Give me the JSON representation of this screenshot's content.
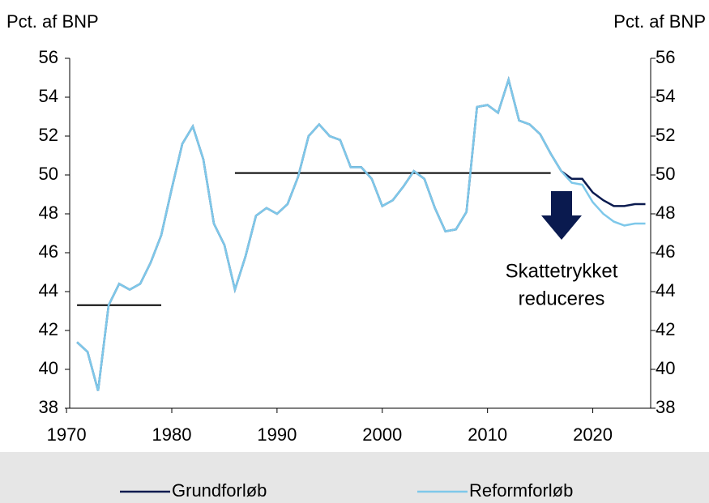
{
  "chart_data": {
    "type": "line",
    "ylabel": "Pct. af BNP",
    "y2label": "Pct. af BNP",
    "x": [
      1971,
      1972,
      1973,
      1974,
      1975,
      1976,
      1977,
      1978,
      1979,
      1980,
      1981,
      1982,
      1983,
      1984,
      1985,
      1986,
      1987,
      1988,
      1989,
      1990,
      1991,
      1992,
      1993,
      1994,
      1995,
      1996,
      1997,
      1998,
      1999,
      2000,
      2001,
      2002,
      2003,
      2004,
      2005,
      2006,
      2007,
      2008,
      2009,
      2010,
      2011,
      2012,
      2013,
      2014,
      2015,
      2016,
      2017,
      2018,
      2019,
      2020,
      2021,
      2022,
      2023,
      2024,
      2025
    ],
    "series": [
      {
        "name": "Grundforløb",
        "color": "#0a1a4f",
        "values": [
          41.4,
          40.9,
          38.9,
          43.3,
          44.4,
          44.1,
          44.4,
          45.5,
          46.9,
          49.3,
          51.6,
          52.5,
          50.8,
          47.5,
          46.4,
          44.1,
          45.8,
          47.9,
          48.3,
          48.0,
          48.5,
          49.9,
          52.0,
          52.6,
          52.0,
          51.8,
          50.4,
          50.4,
          49.8,
          48.4,
          48.7,
          49.4,
          50.2,
          49.8,
          48.3,
          47.1,
          47.2,
          48.1,
          53.5,
          53.6,
          53.2,
          54.9,
          52.8,
          52.6,
          52.1,
          51.1,
          50.2,
          49.8,
          49.8,
          49.1,
          48.7,
          48.4,
          48.4,
          48.5,
          48.5
        ]
      },
      {
        "name": "Reformforløb",
        "color": "#7ec8ea",
        "values": [
          41.4,
          40.9,
          38.9,
          43.3,
          44.4,
          44.1,
          44.4,
          45.5,
          46.9,
          49.3,
          51.6,
          52.5,
          50.8,
          47.5,
          46.4,
          44.1,
          45.8,
          47.9,
          48.3,
          48.0,
          48.5,
          49.9,
          52.0,
          52.6,
          52.0,
          51.8,
          50.4,
          50.4,
          49.8,
          48.4,
          48.7,
          49.4,
          50.2,
          49.8,
          48.3,
          47.1,
          47.2,
          48.1,
          53.5,
          53.6,
          53.2,
          54.9,
          52.8,
          52.6,
          52.1,
          51.1,
          50.2,
          49.6,
          49.5,
          48.6,
          48.0,
          47.6,
          47.4,
          47.5,
          47.5
        ]
      }
    ],
    "reference_lines": [
      {
        "x": [
          1971,
          1979
        ],
        "value": 43.3,
        "color": "#000000"
      },
      {
        "x": [
          1986,
          2016
        ],
        "value": 50.1,
        "color": "#000000"
      }
    ],
    "annotation": [
      "Skattetrykket",
      "reduceres"
    ],
    "xlim": [
      1970.3,
      2025.5
    ],
    "xticks": [
      1970,
      1980,
      1990,
      2000,
      2010,
      2020
    ],
    "ylim": [
      38,
      56
    ],
    "yticks": [
      38,
      40,
      42,
      44,
      46,
      48,
      50,
      52,
      54,
      56
    ],
    "y2lim": [
      38,
      56
    ],
    "y2ticks": [
      38,
      40,
      42,
      44,
      46,
      48,
      50,
      52,
      54,
      56
    ]
  }
}
